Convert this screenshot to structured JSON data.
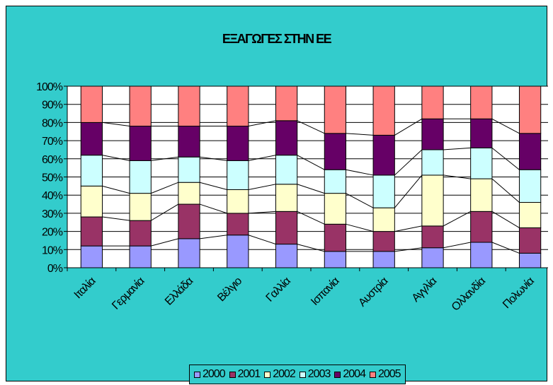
{
  "chart_data": {
    "type": "bar",
    "stacked": true,
    "percent_stacked": true,
    "title": "ΕΞΑΓΩΓΕΣ ΣΤΗΝ ΕΕ",
    "xlabel": "",
    "ylabel": "",
    "ylim": [
      0,
      100
    ],
    "y_ticks": [
      "0%",
      "10%",
      "20%",
      "30%",
      "40%",
      "50%",
      "60%",
      "70%",
      "80%",
      "90%",
      "100%"
    ],
    "categories": [
      "Ιταλία",
      "Γερμανία",
      "Ελλάδα",
      "Βέλγιο",
      "Γαλλία",
      "Ισπανία",
      "Αυστρία",
      "Αγγλία",
      "Ολλανδία",
      "Πολωνία"
    ],
    "grid": true,
    "series_connector_lines": true,
    "legend_position": "bottom",
    "series": [
      {
        "name": "2000",
        "color": "#9999ff",
        "values": [
          12,
          12,
          16,
          18,
          13,
          9,
          9,
          11,
          14,
          8
        ]
      },
      {
        "name": "2001",
        "color": "#993366",
        "values": [
          16,
          14,
          19,
          12,
          18,
          15,
          11,
          12,
          17,
          14
        ]
      },
      {
        "name": "2002",
        "color": "#ffffcc",
        "values": [
          17,
          15,
          12,
          13,
          15,
          17,
          13,
          28,
          18,
          14
        ]
      },
      {
        "name": "2003",
        "color": "#ccffff",
        "values": [
          17,
          18,
          14,
          16,
          16,
          13,
          18,
          14,
          17,
          18
        ]
      },
      {
        "name": "2004",
        "color": "#660066",
        "values": [
          18,
          19,
          17,
          19,
          19,
          20,
          22,
          17,
          16,
          20
        ]
      },
      {
        "name": "2005",
        "color": "#ff8080",
        "values": [
          20,
          22,
          22,
          22,
          19,
          26,
          27,
          18,
          18,
          26
        ]
      }
    ]
  }
}
